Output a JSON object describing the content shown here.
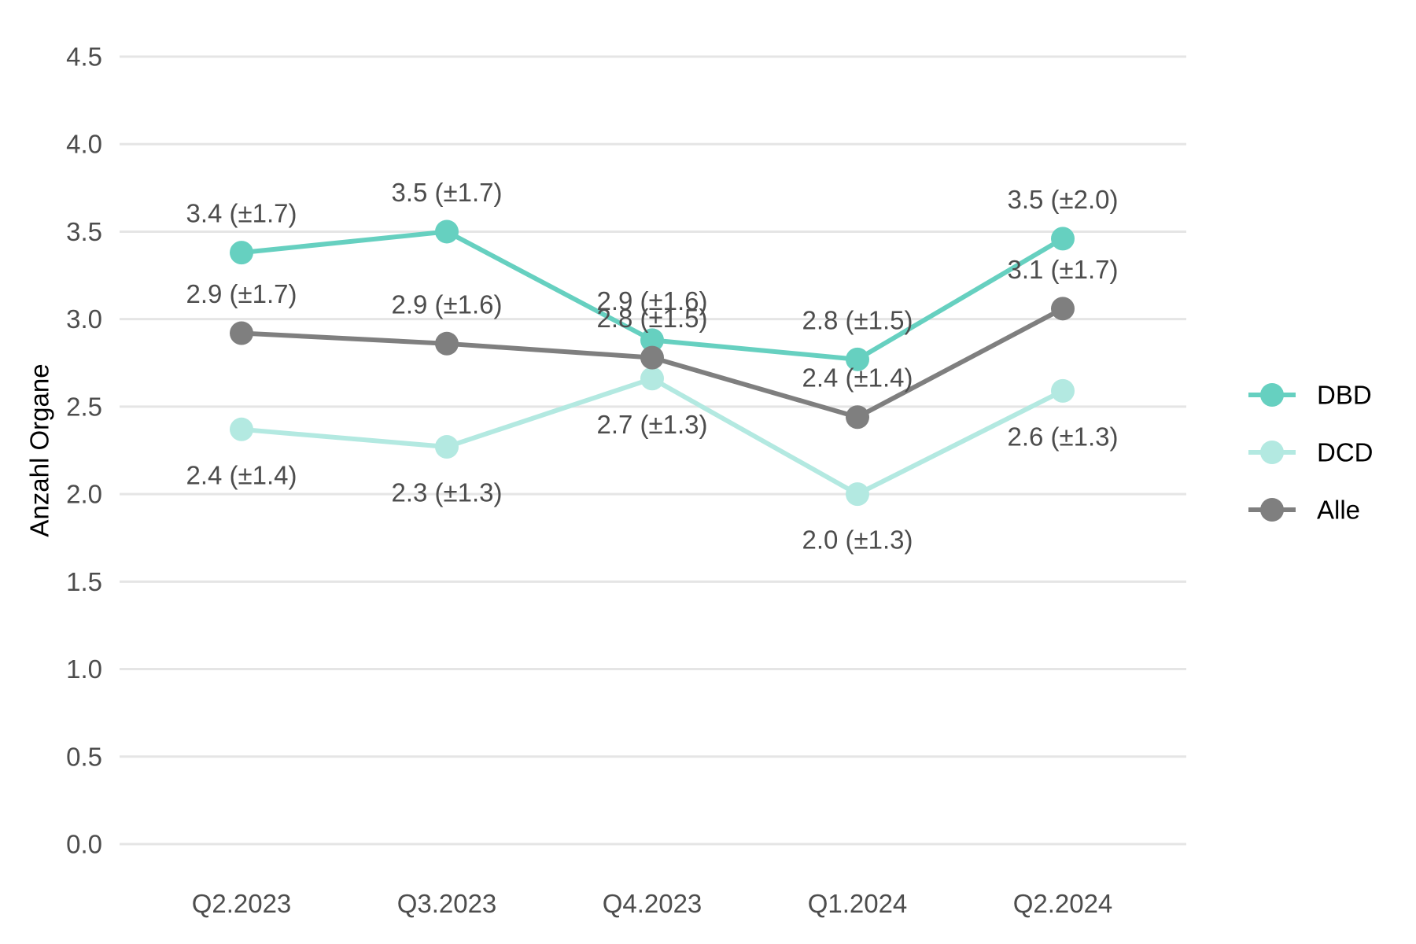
{
  "chart_data": {
    "type": "line",
    "categories": [
      "Q2.2023",
      "Q3.2023",
      "Q4.2023",
      "Q1.2024",
      "Q2.2024"
    ],
    "ylabel": "Anzahl Organe",
    "xlabel": "",
    "ylim": [
      0,
      4.5
    ],
    "yticks": [
      "0.0",
      "0.5",
      "1.0",
      "1.5",
      "2.0",
      "2.5",
      "3.0",
      "3.5",
      "4.0",
      "4.5"
    ],
    "grid": "horizontal",
    "legend_position": "right",
    "series": [
      {
        "name": "DBD",
        "color": "#66d0c0",
        "values": [
          3.38,
          3.5,
          2.88,
          2.77,
          3.46
        ],
        "labels": [
          "3.4 (±1.7)",
          "3.5 (±1.7)",
          "2.9 (±1.6)",
          "2.8 (±1.5)",
          "3.5 (±2.0)"
        ],
        "label_side": [
          "above",
          "above",
          "above",
          "above",
          "above"
        ]
      },
      {
        "name": "DCD",
        "color": "#b3e9e1",
        "values": [
          2.37,
          2.27,
          2.66,
          2.0,
          2.59
        ],
        "labels": [
          "2.4 (±1.4)",
          "2.3 (±1.3)",
          "2.7 (±1.3)",
          "2.0 (±1.3)",
          "2.6 (±1.3)"
        ],
        "label_side": [
          "below",
          "below",
          "below",
          "below",
          "below"
        ]
      },
      {
        "name": "Alle",
        "color": "#7f7f7f",
        "values": [
          2.92,
          2.86,
          2.78,
          2.44,
          3.06
        ],
        "labels": [
          "2.9 (±1.7)",
          "2.9 (±1.6)",
          "2.8 (±1.5)",
          "2.4 (±1.4)",
          "3.1 (±1.7)"
        ],
        "label_side": [
          "above",
          "above",
          "above",
          "above",
          "above"
        ]
      }
    ]
  }
}
